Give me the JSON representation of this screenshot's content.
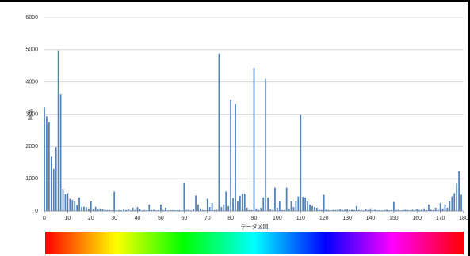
{
  "chart_data": {
    "type": "bar",
    "x_label": "データ区間",
    "y_label": "頻度",
    "x": [
      0,
      1,
      2,
      3,
      4,
      5,
      6,
      7,
      8,
      9,
      10,
      11,
      12,
      13,
      14,
      15,
      16,
      17,
      18,
      19,
      20,
      21,
      22,
      23,
      24,
      25,
      26,
      27,
      28,
      29,
      30,
      31,
      32,
      33,
      34,
      35,
      36,
      37,
      38,
      39,
      40,
      41,
      42,
      43,
      44,
      45,
      46,
      47,
      48,
      49,
      50,
      51,
      52,
      53,
      54,
      55,
      56,
      57,
      58,
      59,
      60,
      61,
      62,
      63,
      64,
      65,
      66,
      67,
      68,
      69,
      70,
      71,
      72,
      73,
      74,
      75,
      76,
      77,
      78,
      79,
      80,
      81,
      82,
      83,
      84,
      85,
      86,
      87,
      88,
      89,
      90,
      91,
      92,
      93,
      94,
      95,
      96,
      97,
      98,
      99,
      100,
      101,
      102,
      103,
      104,
      105,
      106,
      107,
      108,
      109,
      110,
      111,
      112,
      113,
      114,
      115,
      116,
      117,
      118,
      119,
      120,
      121,
      122,
      123,
      124,
      125,
      126,
      127,
      128,
      129,
      130,
      131,
      132,
      133,
      134,
      135,
      136,
      137,
      138,
      139,
      140,
      141,
      142,
      143,
      144,
      145,
      146,
      147,
      148,
      149,
      150,
      151,
      152,
      153,
      154,
      155,
      156,
      157,
      158,
      159,
      160,
      161,
      162,
      163,
      164,
      165,
      166,
      167,
      168,
      169,
      170,
      171,
      172,
      173,
      174,
      175,
      176,
      177,
      178,
      179
    ],
    "values": [
      3200,
      2930,
      2750,
      1680,
      1300,
      1980,
      4980,
      3620,
      680,
      520,
      550,
      380,
      340,
      300,
      180,
      420,
      120,
      130,
      120,
      80,
      300,
      60,
      130,
      60,
      80,
      50,
      40,
      30,
      30,
      20,
      600,
      20,
      30,
      20,
      40,
      30,
      60,
      20,
      100,
      30,
      120,
      60,
      20,
      30,
      20,
      200,
      30,
      40,
      20,
      30,
      200,
      30,
      100,
      20,
      30,
      30,
      20,
      20,
      30,
      20,
      870,
      30,
      40,
      20,
      60,
      480,
      200,
      80,
      30,
      20,
      380,
      120,
      250,
      30,
      40,
      4880,
      120,
      200,
      600,
      150,
      3450,
      400,
      3320,
      300,
      470,
      540,
      540,
      100,
      30,
      30,
      4430,
      80,
      30,
      100,
      420,
      4100,
      420,
      60,
      30,
      720,
      100,
      300,
      30,
      30,
      720,
      80,
      300,
      120,
      300,
      450,
      2980,
      440,
      420,
      300,
      200,
      150,
      120,
      100,
      40,
      30,
      500,
      40,
      30,
      20,
      40,
      30,
      40,
      60,
      30,
      40,
      60,
      30,
      40,
      30,
      150,
      30,
      40,
      20,
      60,
      30,
      80,
      30,
      40,
      20,
      30,
      20,
      30,
      40,
      20,
      30,
      280,
      30,
      40,
      20,
      30,
      40,
      30,
      20,
      40,
      30,
      60,
      30,
      40,
      80,
      30,
      200,
      40,
      30,
      100,
      40,
      240,
      80,
      200,
      100,
      300,
      450,
      550,
      850,
      1230,
      500
    ],
    "color": "#4f81bd",
    "xlim": [
      0,
      180
    ],
    "xticks": [
      0,
      10,
      20,
      30,
      40,
      50,
      60,
      70,
      80,
      90,
      100,
      110,
      120,
      130,
      140,
      150,
      160,
      170,
      180
    ],
    "ylim": [
      0,
      6000
    ],
    "yticks": [
      0,
      1000,
      2000,
      3000,
      4000,
      5000,
      6000
    ],
    "grid": true
  }
}
